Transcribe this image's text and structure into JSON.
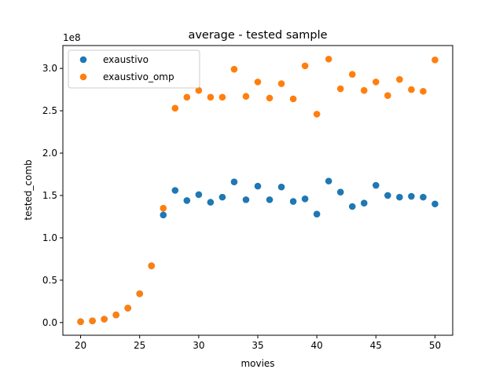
{
  "chart_data": {
    "type": "scatter",
    "title": "average - tested sample",
    "xlabel": "movies",
    "ylabel": "tested_comb",
    "y_offset_label": "1e8",
    "xlim": [
      18.5,
      51.5
    ],
    "ylim": [
      -0.15,
      3.27
    ],
    "x_ticks": [
      20,
      25,
      30,
      35,
      40,
      45,
      50
    ],
    "y_ticks": [
      0.0,
      0.5,
      1.0,
      1.5,
      2.0,
      2.5,
      3.0
    ],
    "y_tick_labels": [
      "0.0",
      "0.5",
      "1.0",
      "1.5",
      "2.0",
      "2.5",
      "3.0"
    ],
    "legend_position": "top-left",
    "grid": false,
    "x": [
      20,
      21,
      22,
      23,
      24,
      25,
      26,
      27,
      28,
      29,
      30,
      31,
      32,
      33,
      34,
      35,
      36,
      37,
      38,
      39,
      40,
      41,
      42,
      43,
      44,
      45,
      46,
      47,
      48,
      49,
      50
    ],
    "series": [
      {
        "name": "exaustivo",
        "color": "#1f77b4",
        "values": [
          0.01,
          0.02,
          0.04,
          0.09,
          0.17,
          0.34,
          0.67,
          1.27,
          1.56,
          1.44,
          1.51,
          1.42,
          1.48,
          1.66,
          1.45,
          1.61,
          1.45,
          1.6,
          1.43,
          1.46,
          1.28,
          1.67,
          1.54,
          1.37,
          1.41,
          1.62,
          1.5,
          1.48,
          1.49,
          1.48,
          1.4
        ]
      },
      {
        "name": "exaustivo_omp",
        "color": "#ff7f0e",
        "values": [
          0.01,
          0.02,
          0.04,
          0.09,
          0.17,
          0.34,
          0.67,
          1.35,
          2.53,
          2.66,
          2.74,
          2.66,
          2.66,
          2.99,
          2.67,
          2.84,
          2.65,
          2.82,
          2.64,
          3.03,
          2.46,
          3.11,
          2.76,
          2.93,
          2.74,
          2.84,
          2.68,
          2.87,
          2.75,
          2.73,
          3.1
        ]
      }
    ]
  }
}
